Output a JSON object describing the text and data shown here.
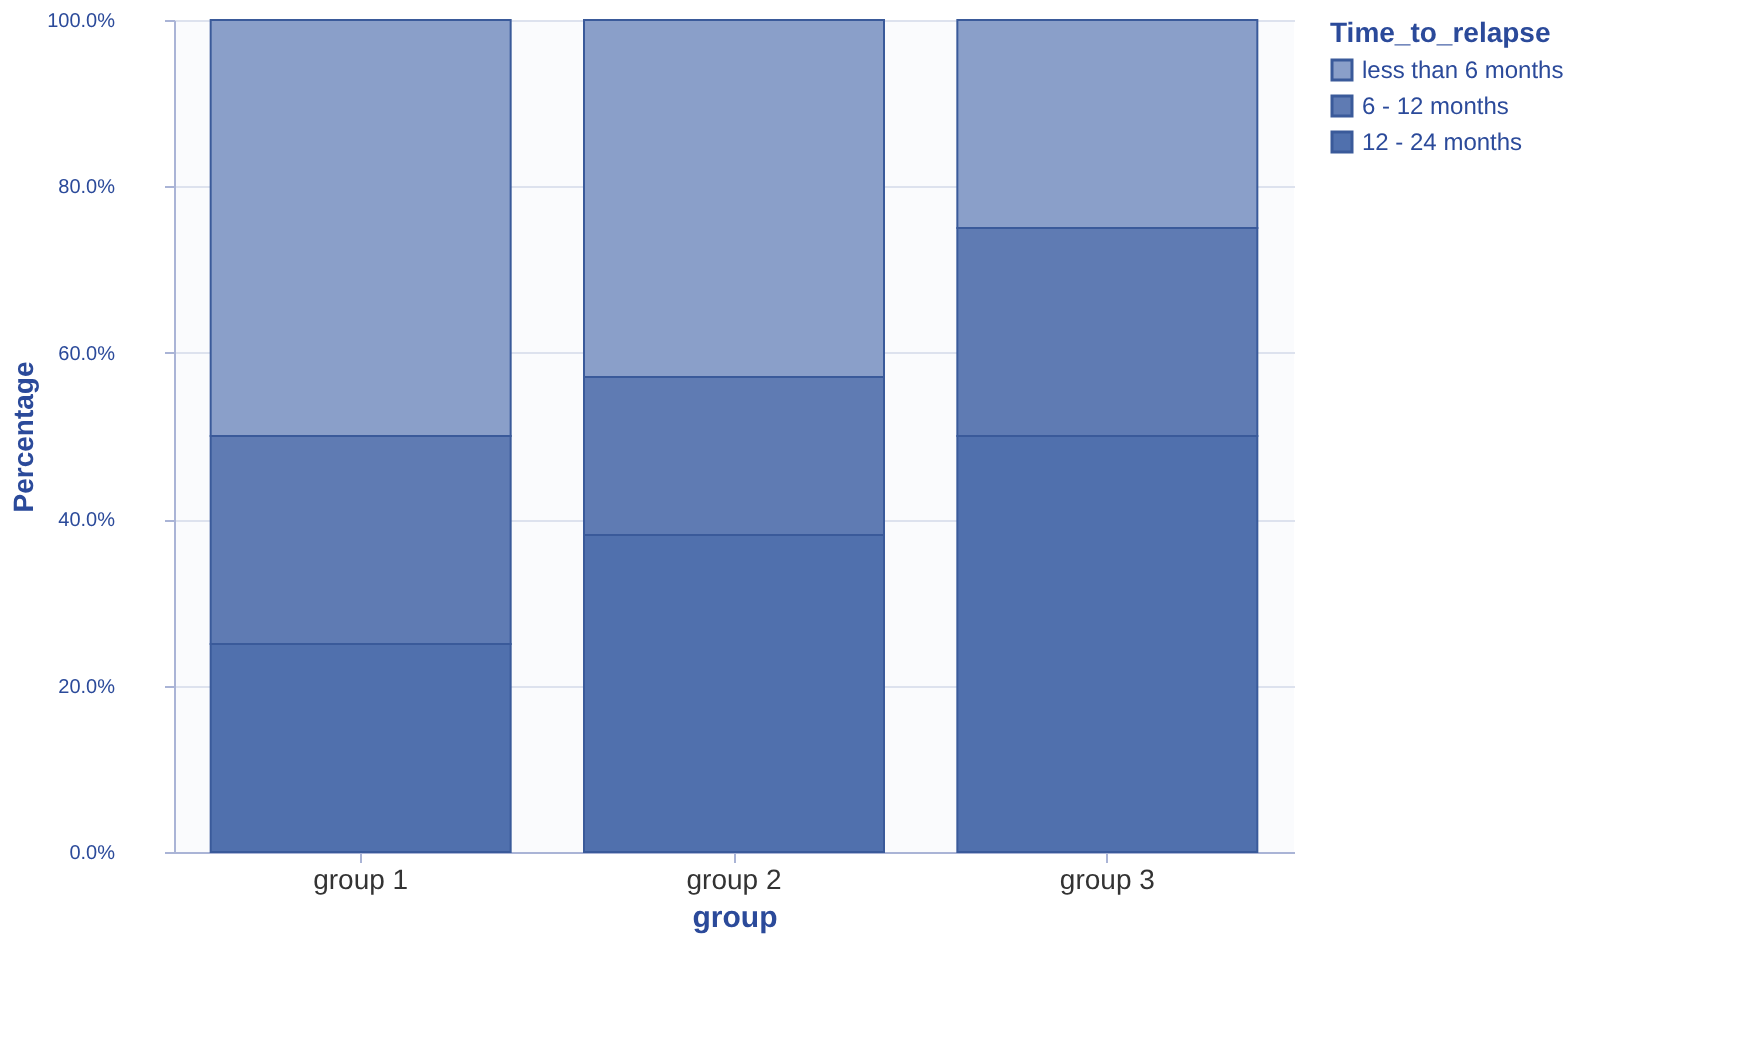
{
  "chart_data": {
    "type": "bar",
    "stacked": true,
    "xlabel": "group",
    "ylabel": "Percentage",
    "legend_title": "Time_to_relapse",
    "legend": "top right",
    "categories": [
      "group 1",
      "group 2",
      "group 3"
    ],
    "series": [
      {
        "name": "12 - 24 months",
        "color": "#5070ad",
        "values": [
          25.0,
          38.1,
          50.0
        ]
      },
      {
        "name": "6 - 12 months",
        "color": "#5f7bb3",
        "values": [
          25.0,
          19.0,
          25.0
        ]
      },
      {
        "name": "less than 6 months",
        "color": "#8a9fc9",
        "values": [
          50.0,
          42.9,
          25.0
        ]
      }
    ],
    "ylim": [
      0,
      100
    ],
    "yticks": [
      {
        "value": 0,
        "label": "0.0%"
      },
      {
        "value": 20,
        "label": "20.0%"
      },
      {
        "value": 40,
        "label": "40.0%"
      },
      {
        "value": 60,
        "label": "60.0%"
      },
      {
        "value": 80,
        "label": "80.0%"
      },
      {
        "value": 100,
        "label": "100.0%"
      }
    ],
    "grid": "y"
  }
}
